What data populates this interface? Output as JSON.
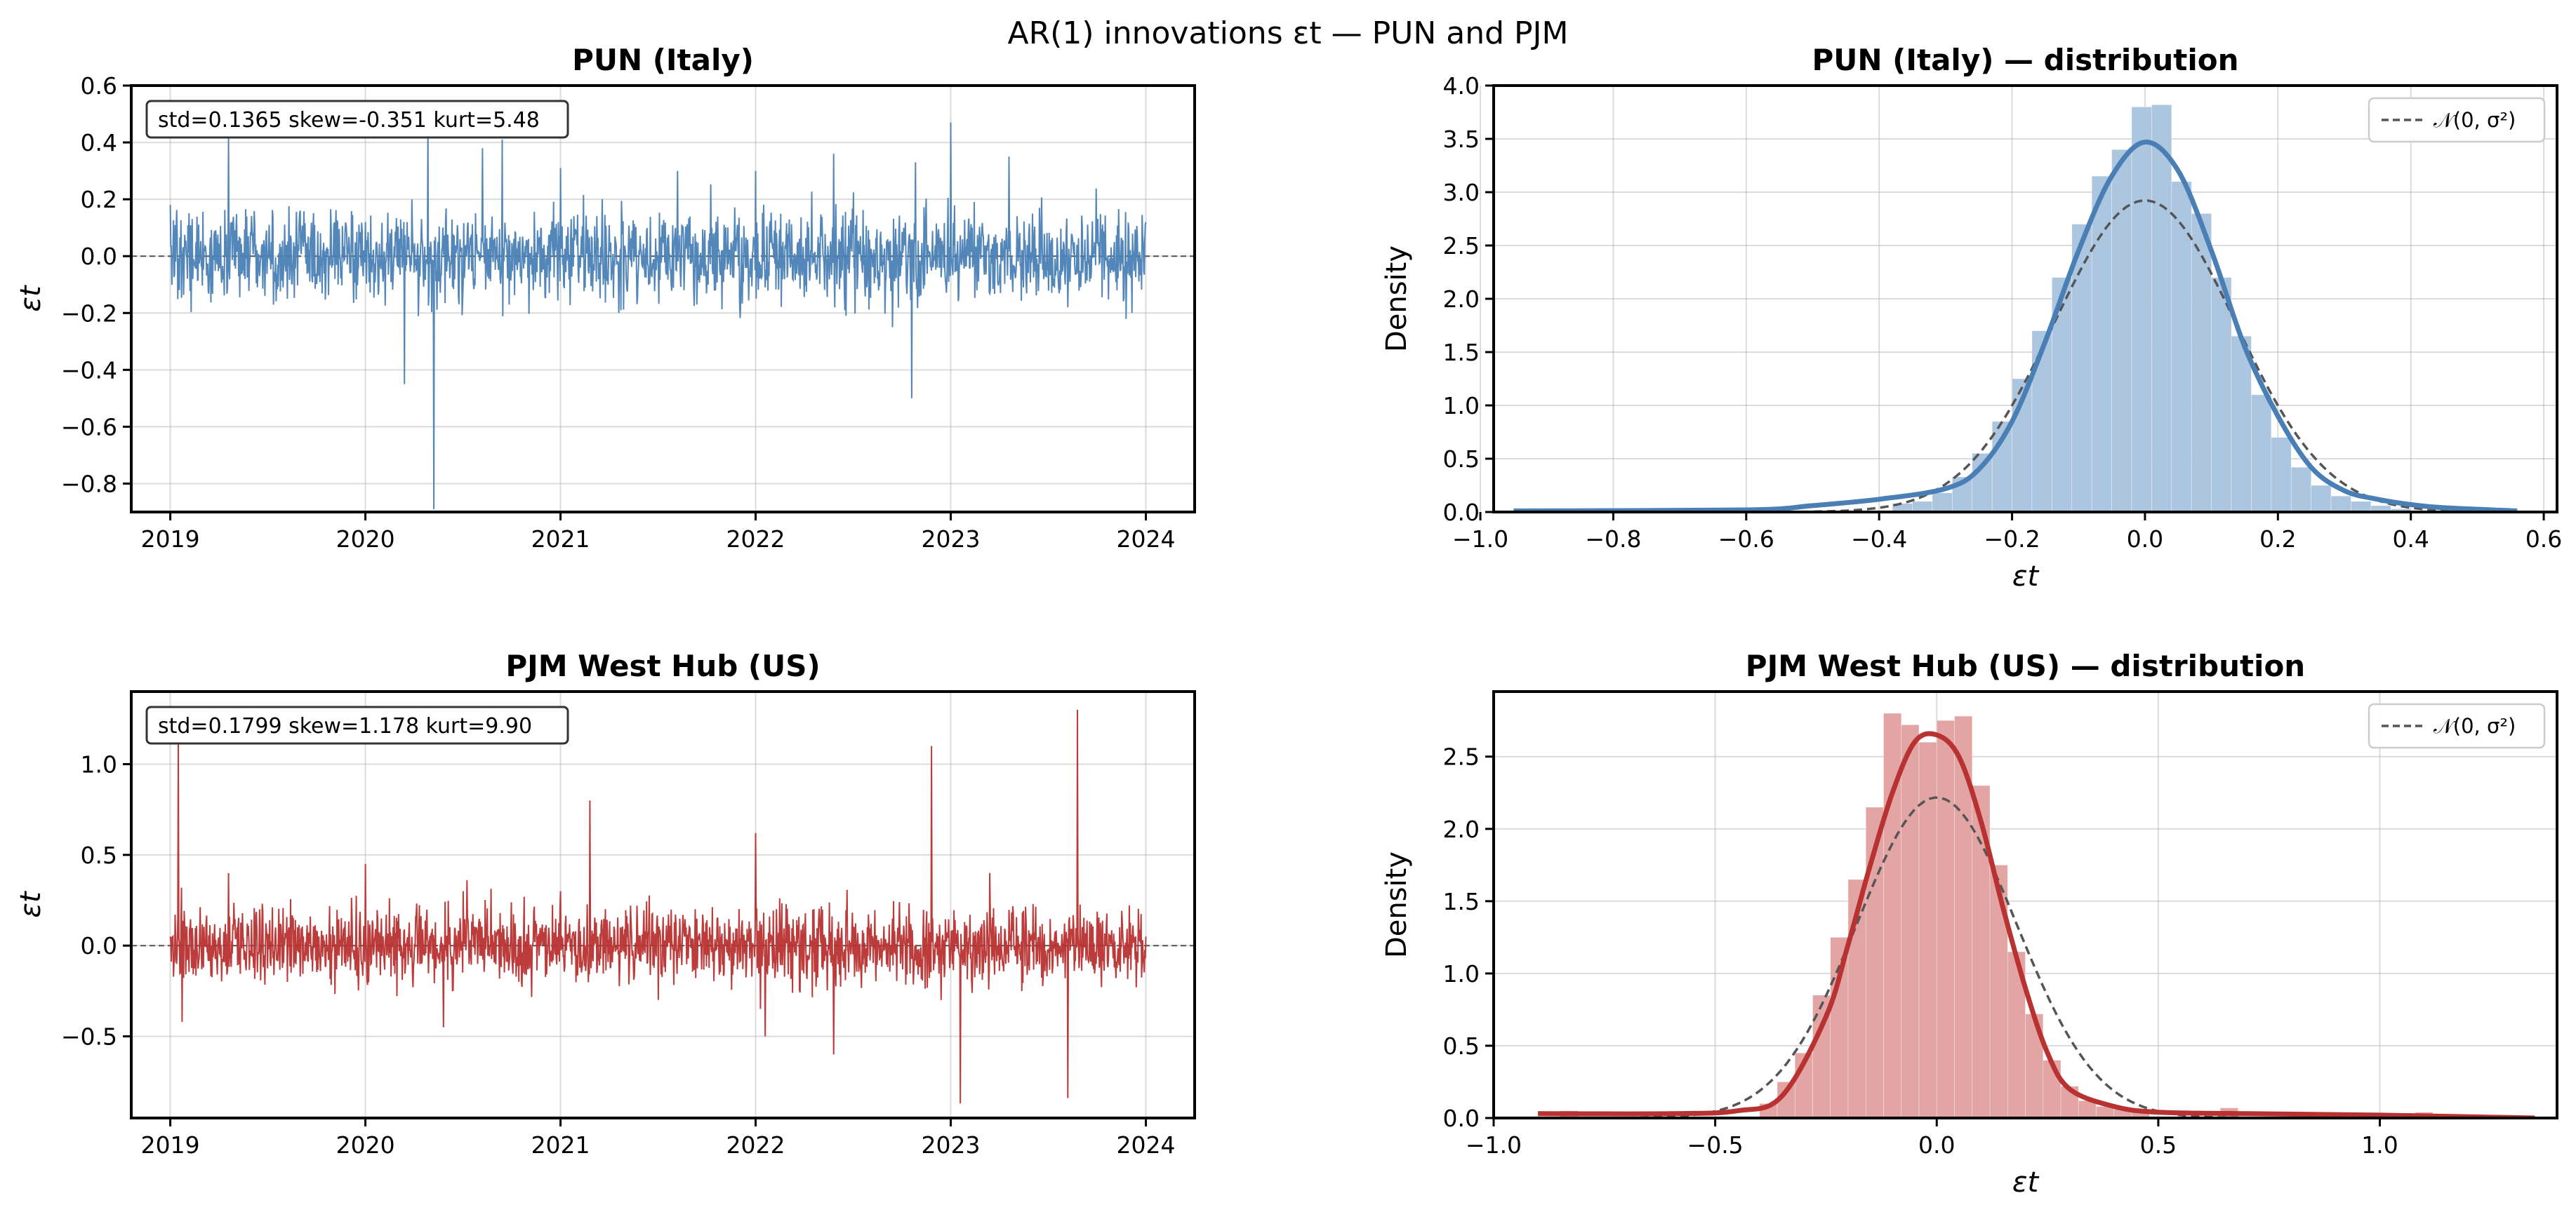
{
  "figure": {
    "suptitle": "AR(1) innovations εt — PUN and PJM",
    "colors": {
      "pun": "#4a7fb5",
      "pjm": "#b83232",
      "pun_hist": "#adc6e0",
      "pjm_hist": "#e3a4a4",
      "normal": "#555555",
      "zero_line": "#555555"
    }
  },
  "chart_data": [
    {
      "id": "pun_ts",
      "type": "line",
      "title": "PUN (Italy)",
      "xlabel": "",
      "ylabel": "εt",
      "xlim": [
        2018.8,
        2024.25
      ],
      "ylim": [
        -0.9,
        0.6
      ],
      "xticks": [
        2019,
        2020,
        2021,
        2022,
        2023,
        2024
      ],
      "xtick_labels": [
        "2019",
        "2020",
        "2021",
        "2022",
        "2023",
        "2024"
      ],
      "yticks": [
        -0.8,
        -0.6,
        -0.4,
        -0.2,
        0.0,
        0.2,
        0.4,
        0.6
      ],
      "ytick_labels": [
        "−0.8",
        "−0.6",
        "−0.4",
        "−0.2",
        "0.0",
        "0.2",
        "0.4",
        "0.6"
      ],
      "stats_text": "std=0.1365  skew=-0.351  kurt=5.48",
      "std": 0.1365,
      "skew": -0.351,
      "kurt": 5.48,
      "zero_line": true,
      "grid": true,
      "series_sample": {
        "x": [
          2019.0,
          2019.3,
          2019.6,
          2020.0,
          2020.2,
          2020.32,
          2020.35,
          2020.6,
          2020.7,
          2021.0,
          2021.3,
          2021.6,
          2022.0,
          2022.4,
          2022.7,
          2022.8,
          2022.82,
          2023.0,
          2023.3,
          2023.6,
          2024.0
        ],
        "y": [
          0.18,
          0.42,
          -0.15,
          0.12,
          -0.45,
          0.47,
          -0.89,
          0.38,
          0.41,
          0.31,
          -0.2,
          0.3,
          0.3,
          0.36,
          -0.25,
          -0.5,
          0.33,
          0.47,
          0.35,
          -0.18,
          0.12
        ]
      }
    },
    {
      "id": "pun_hist",
      "type": "bar",
      "title": "PUN (Italy) — distribution",
      "xlabel": "εt",
      "ylabel": "Density",
      "xlim": [
        -0.98,
        0.62
      ],
      "ylim": [
        0,
        4.0
      ],
      "xticks": [
        -1.0,
        -0.8,
        -0.6,
        -0.4,
        -0.2,
        0.0,
        0.2,
        0.4,
        0.6
      ],
      "xtick_labels": [
        "−1.0",
        "−0.8",
        "−0.6",
        "−0.4",
        "−0.2",
        "0.0",
        "0.2",
        "0.4",
        "0.6"
      ],
      "yticks": [
        0.0,
        0.5,
        1.0,
        1.5,
        2.0,
        2.5,
        3.0,
        3.5,
        4.0
      ],
      "ytick_labels": [
        "0.0",
        "0.5",
        "1.0",
        "1.5",
        "2.0",
        "2.5",
        "3.0",
        "3.5",
        "4.0"
      ],
      "legend": {
        "label": "𝒩(0, σ²)",
        "position": "top-right"
      },
      "grid": true,
      "bins": [
        {
          "x0": -0.38,
          "x1": -0.35,
          "y": 0.08
        },
        {
          "x0": -0.35,
          "x1": -0.32,
          "y": 0.1
        },
        {
          "x0": -0.32,
          "x1": -0.29,
          "y": 0.18
        },
        {
          "x0": -0.29,
          "x1": -0.26,
          "y": 0.33
        },
        {
          "x0": -0.26,
          "x1": -0.23,
          "y": 0.55
        },
        {
          "x0": -0.23,
          "x1": -0.2,
          "y": 0.85
        },
        {
          "x0": -0.2,
          "x1": -0.17,
          "y": 1.25
        },
        {
          "x0": -0.17,
          "x1": -0.14,
          "y": 1.7
        },
        {
          "x0": -0.14,
          "x1": -0.11,
          "y": 2.2
        },
        {
          "x0": -0.11,
          "x1": -0.08,
          "y": 2.7
        },
        {
          "x0": -0.08,
          "x1": -0.05,
          "y": 3.15
        },
        {
          "x0": -0.05,
          "x1": -0.02,
          "y": 3.4
        },
        {
          "x0": -0.02,
          "x1": 0.01,
          "y": 3.8
        },
        {
          "x0": 0.01,
          "x1": 0.04,
          "y": 3.82
        },
        {
          "x0": 0.04,
          "x1": 0.07,
          "y": 3.1
        },
        {
          "x0": 0.07,
          "x1": 0.1,
          "y": 2.8
        },
        {
          "x0": 0.1,
          "x1": 0.13,
          "y": 2.2
        },
        {
          "x0": 0.13,
          "x1": 0.16,
          "y": 1.65
        },
        {
          "x0": 0.16,
          "x1": 0.19,
          "y": 1.1
        },
        {
          "x0": 0.19,
          "x1": 0.22,
          "y": 0.7
        },
        {
          "x0": 0.22,
          "x1": 0.25,
          "y": 0.42
        },
        {
          "x0": 0.25,
          "x1": 0.28,
          "y": 0.25
        },
        {
          "x0": 0.28,
          "x1": 0.31,
          "y": 0.15
        },
        {
          "x0": 0.31,
          "x1": 0.34,
          "y": 0.1
        },
        {
          "x0": 0.34,
          "x1": 0.37,
          "y": 0.06
        },
        {
          "x0": 0.37,
          "x1": 0.4,
          "y": 0.03
        }
      ],
      "kde": {
        "x": [
          -0.95,
          -0.6,
          -0.5,
          -0.4,
          -0.3,
          -0.25,
          -0.2,
          -0.15,
          -0.1,
          -0.05,
          0.0,
          0.05,
          0.1,
          0.15,
          0.2,
          0.25,
          0.3,
          0.35,
          0.4,
          0.45,
          0.56
        ],
        "y": [
          0.01,
          0.02,
          0.06,
          0.12,
          0.22,
          0.4,
          0.85,
          1.6,
          2.45,
          3.15,
          3.47,
          3.2,
          2.45,
          1.55,
          0.9,
          0.42,
          0.2,
          0.12,
          0.07,
          0.04,
          0.01
        ]
      },
      "normal_std": 0.1365
    },
    {
      "id": "pjm_ts",
      "type": "line",
      "title": "PJM West Hub (US)",
      "xlabel": "",
      "ylabel": "εt",
      "xlim": [
        2018.8,
        2024.25
      ],
      "ylim": [
        -0.95,
        1.4
      ],
      "xticks": [
        2019,
        2020,
        2021,
        2022,
        2023,
        2024
      ],
      "xtick_labels": [
        "2019",
        "2020",
        "2021",
        "2022",
        "2023",
        "2024"
      ],
      "yticks": [
        -0.5,
        0.0,
        0.5,
        1.0
      ],
      "ytick_labels": [
        "−0.5",
        "0.0",
        "0.5",
        "1.0"
      ],
      "stats_text": "std=0.1799  skew=1.178  kurt=9.90",
      "std": 0.1799,
      "skew": 1.178,
      "kurt": 9.9,
      "zero_line": true,
      "grid": true,
      "series_sample": {
        "x": [
          2019.0,
          2019.04,
          2019.06,
          2019.3,
          2019.6,
          2020.0,
          2020.4,
          2020.5,
          2021.0,
          2021.15,
          2021.5,
          2022.0,
          2022.05,
          2022.4,
          2022.9,
          2022.95,
          2023.05,
          2023.2,
          2023.6,
          2023.65,
          2024.0
        ],
        "y": [
          0.05,
          1.12,
          -0.42,
          0.4,
          -0.2,
          0.45,
          -0.45,
          0.3,
          0.3,
          0.8,
          -0.3,
          0.62,
          -0.5,
          -0.6,
          1.1,
          -0.3,
          -0.87,
          0.4,
          -0.84,
          1.3,
          0.05
        ]
      }
    },
    {
      "id": "pjm_hist",
      "type": "bar",
      "title": "PJM West Hub (US) — distribution",
      "xlabel": "εt",
      "ylabel": "Density",
      "xlim": [
        -1.0,
        1.4
      ],
      "ylim": [
        0,
        2.95
      ],
      "xticks": [
        -1.0,
        -0.5,
        0.0,
        0.5,
        1.0
      ],
      "xtick_labels": [
        "−1.0",
        "−0.5",
        "0.0",
        "0.5",
        "1.0"
      ],
      "yticks": [
        0.0,
        0.5,
        1.0,
        1.5,
        2.0,
        2.5
      ],
      "ytick_labels": [
        "0.0",
        "0.5",
        "1.0",
        "1.5",
        "2.0",
        "2.5"
      ],
      "legend": {
        "label": "𝒩(0, σ²)",
        "position": "top-right"
      },
      "grid": true,
      "bins": [
        {
          "x0": -0.85,
          "x1": -0.81,
          "y": 0.05
        },
        {
          "x0": -0.4,
          "x1": -0.36,
          "y": 0.1
        },
        {
          "x0": -0.36,
          "x1": -0.32,
          "y": 0.25
        },
        {
          "x0": -0.32,
          "x1": -0.28,
          "y": 0.45
        },
        {
          "x0": -0.28,
          "x1": -0.24,
          "y": 0.85
        },
        {
          "x0": -0.24,
          "x1": -0.2,
          "y": 1.25
        },
        {
          "x0": -0.2,
          "x1": -0.16,
          "y": 1.65
        },
        {
          "x0": -0.16,
          "x1": -0.12,
          "y": 2.15
        },
        {
          "x0": -0.12,
          "x1": -0.08,
          "y": 2.8
        },
        {
          "x0": -0.08,
          "x1": -0.04,
          "y": 2.72
        },
        {
          "x0": -0.04,
          "x1": 0.0,
          "y": 2.6
        },
        {
          "x0": 0.0,
          "x1": 0.04,
          "y": 2.75
        },
        {
          "x0": 0.04,
          "x1": 0.08,
          "y": 2.78
        },
        {
          "x0": 0.08,
          "x1": 0.12,
          "y": 2.3
        },
        {
          "x0": 0.12,
          "x1": 0.16,
          "y": 1.75
        },
        {
          "x0": 0.16,
          "x1": 0.2,
          "y": 1.15
        },
        {
          "x0": 0.2,
          "x1": 0.24,
          "y": 0.72
        },
        {
          "x0": 0.24,
          "x1": 0.28,
          "y": 0.4
        },
        {
          "x0": 0.28,
          "x1": 0.32,
          "y": 0.22
        },
        {
          "x0": 0.32,
          "x1": 0.36,
          "y": 0.12
        },
        {
          "x0": 0.36,
          "x1": 0.4,
          "y": 0.08
        },
        {
          "x0": 0.4,
          "x1": 0.44,
          "y": 0.06
        },
        {
          "x0": 0.44,
          "x1": 0.48,
          "y": 0.05
        },
        {
          "x0": 0.64,
          "x1": 0.68,
          "y": 0.07
        },
        {
          "x0": 1.08,
          "x1": 1.12,
          "y": 0.04
        }
      ],
      "kde": {
        "x": [
          -0.9,
          -0.6,
          -0.45,
          -0.35,
          -0.25,
          -0.2,
          -0.15,
          -0.1,
          -0.05,
          0.0,
          0.05,
          0.1,
          0.15,
          0.2,
          0.25,
          0.3,
          0.4,
          0.5,
          0.7,
          1.0,
          1.35
        ],
        "y": [
          0.03,
          0.03,
          0.05,
          0.15,
          0.7,
          1.2,
          1.75,
          2.25,
          2.6,
          2.65,
          2.5,
          2.05,
          1.45,
          0.9,
          0.45,
          0.2,
          0.08,
          0.04,
          0.03,
          0.02,
          0.0
        ]
      },
      "normal_std": 0.1799
    }
  ]
}
